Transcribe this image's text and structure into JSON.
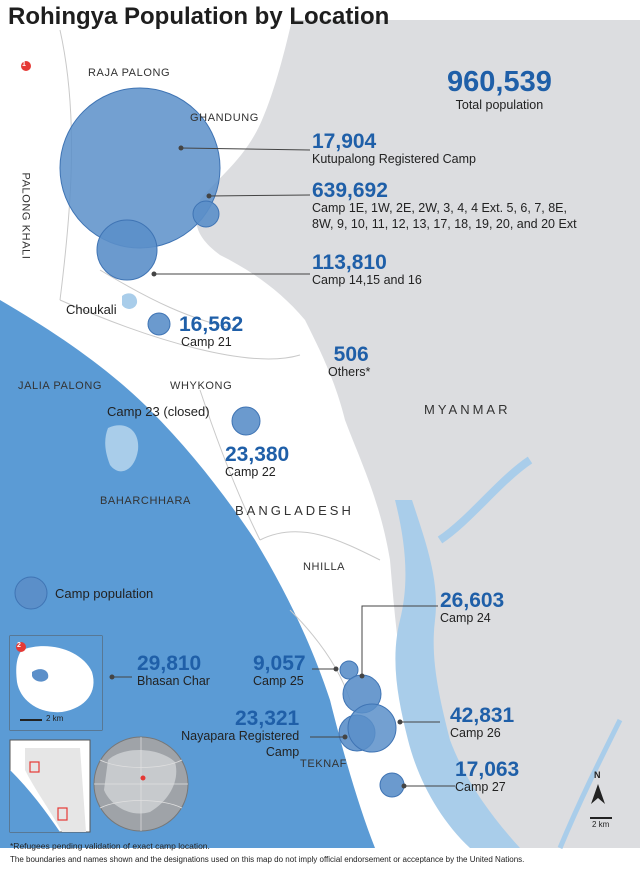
{
  "title": "Rohingya Population by Location",
  "total": {
    "value": "960,539",
    "label": "Total population"
  },
  "camps": [
    {
      "key": "kutupalong_registered",
      "value": "17,904",
      "label": "Kutupalong Registered Camp"
    },
    {
      "key": "kutupalong_expansion",
      "value": "639,692",
      "label_lines": [
        "Camp 1E, 1W, 2E, 2W, 3, 4, 4 Ext. 5, 6, 7, 8E,",
        "8W, 9, 10, 11, 12, 13, 17, 18, 19, 20, and 20 Ext"
      ]
    },
    {
      "key": "camp_14_15_16",
      "value": "113,810",
      "label": "Camp 14,15 and 16"
    },
    {
      "key": "camp_21",
      "value": "16,562",
      "label": "Camp 21"
    },
    {
      "key": "others",
      "value": "506",
      "label": "Others*"
    },
    {
      "key": "camp_22",
      "value": "23,380",
      "label": "Camp 22"
    },
    {
      "key": "camp_24",
      "value": "26,603",
      "label": "Camp 24"
    },
    {
      "key": "camp_25",
      "value": "9,057",
      "label": "Camp 25"
    },
    {
      "key": "nayapara",
      "value": "23,321",
      "label_lines": [
        "Nayapara Registered",
        "Camp"
      ]
    },
    {
      "key": "camp_26",
      "value": "42,831",
      "label": "Camp 26"
    },
    {
      "key": "camp_27",
      "value": "17,063",
      "label": "Camp 27"
    },
    {
      "key": "bhasan_char",
      "value": "29,810",
      "label": "Bhasan Char"
    }
  ],
  "places": {
    "raja_palong": "RAJA PALONG",
    "ghandung": "GHANDUNG",
    "palong_khali": "PALONG KHALI",
    "choukali": "Choukali",
    "jalia_palong": "JALIA PALONG",
    "whykong": "WHYKONG",
    "camp23": "Camp 23 (closed)",
    "baharchhara": "BAHARCHHARA",
    "bangladesh": "BANGLADESH",
    "myanmar": "MYANMAR",
    "nhilla": "NHILLA",
    "teknaf": "TEKNAF"
  },
  "legend": {
    "camp_population": "Camp population"
  },
  "inset": {
    "marker_1": "1",
    "marker_2": "2",
    "scale": "2 km"
  },
  "map_scale": "2 km",
  "north": "N",
  "footnote_1": "*Refugees pending validation of exact camp location.",
  "footnote_2": "The boundaries and names shown and the designations used on this map do not imply official endorsement or acceptance by the United Nations.",
  "colors": {
    "sea": "#5b9bd5",
    "myanmar": "#dcdde0",
    "bubble": "#5b8fc9",
    "bubble_edge": "#3f74b4",
    "number": "#1f5fa8",
    "river": "#a9cdea"
  }
}
